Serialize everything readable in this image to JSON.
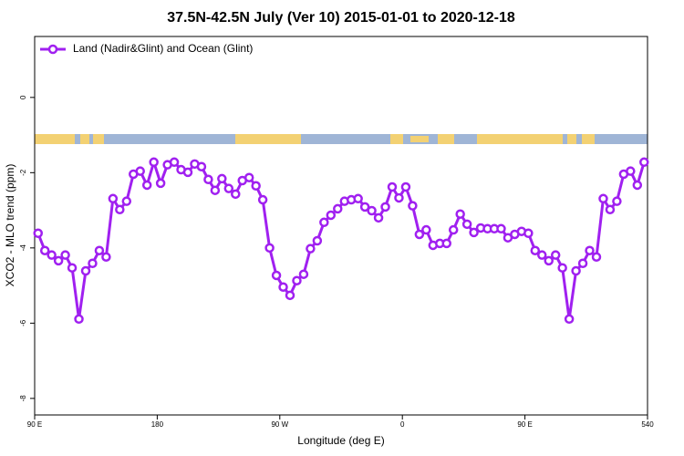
{
  "chart_data": {
    "type": "line",
    "title": "37.5N-42.5N July (Ver 10)   2015-01-01 to 2020-12-18",
    "x_label": "Longitude (deg E)",
    "y_label": "XCO2 - MLO trend (ppm)",
    "x": [
      92.5,
      97.5,
      102.5,
      107.5,
      112.5,
      117.5,
      122.5,
      127.5,
      132.5,
      137.5,
      142.5,
      147.5,
      152.5,
      157.5,
      162.5,
      167.5,
      172.5,
      177.5,
      182.5,
      187.5,
      192.5,
      197.5,
      202.5,
      207.5,
      212.5,
      217.5,
      222.5,
      227.5,
      232.5,
      237.5,
      242.5,
      247.5,
      252.5,
      257.5,
      262.5,
      267.5,
      272.5,
      277.5,
      282.5,
      287.5,
      292.5,
      297.5,
      302.5,
      307.5,
      312.5,
      317.5,
      322.5,
      327.5,
      332.5,
      337.5,
      342.5,
      347.5,
      352.5,
      357.5,
      362.5,
      367.5,
      372.5,
      377.5,
      382.5,
      387.5,
      392.5,
      397.5,
      402.5,
      407.5,
      412.5,
      417.5,
      422.5,
      427.5,
      432.5,
      437.5,
      442.5,
      447.5,
      452.5,
      457.5,
      462.5,
      467.5,
      472.5,
      477.5,
      482.5,
      487.5,
      492.5,
      497.5,
      502.5,
      507.5,
      512.5,
      517.5,
      522.5,
      527.5,
      532.5,
      537.5
    ],
    "series": [
      {
        "name": "Land (Nadir&Glint) and Ocean (Glint)",
        "color": "#a020f0",
        "values": [
          -3.61,
          -4.07,
          -4.19,
          -4.34,
          -4.19,
          -4.53,
          -5.89,
          -4.61,
          -4.41,
          -4.07,
          -4.24,
          -2.69,
          -2.98,
          -2.76,
          -2.04,
          -1.96,
          -2.33,
          -1.72,
          -2.28,
          -1.79,
          -1.72,
          -1.92,
          -1.99,
          -1.77,
          -1.84,
          -2.18,
          -2.47,
          -2.16,
          -2.42,
          -2.57,
          -2.21,
          -2.13,
          -2.35,
          -2.72,
          -4.0,
          -4.73,
          -5.04,
          -5.26,
          -4.87,
          -4.7,
          -4.02,
          -3.81,
          -3.32,
          -3.13,
          -2.96,
          -2.76,
          -2.72,
          -2.69,
          -2.91,
          -3.01,
          -3.2,
          -2.91,
          -2.38,
          -2.67,
          -2.38,
          -2.88,
          -3.64,
          -3.52,
          -3.93,
          -3.88,
          -3.88,
          -3.52,
          -3.1,
          -3.37,
          -3.59,
          -3.47,
          -3.49,
          -3.49,
          -3.49,
          -3.73,
          -3.64,
          -3.56,
          -3.61,
          -4.07,
          -4.19,
          -4.34,
          -4.19,
          -4.53,
          -5.89,
          -4.61,
          -4.41,
          -4.07,
          -4.24,
          -2.69,
          -2.98,
          -2.76,
          -2.04,
          -1.96,
          -2.33,
          -1.72
        ]
      }
    ],
    "xlim": [
      90,
      540
    ],
    "xticks": [
      {
        "value": 90,
        "label": "90 E"
      },
      180,
      {
        "value": 270,
        "label": "90 W"
      },
      {
        "value": 360,
        "label": "0"
      },
      {
        "value": 450,
        "label": "90 E"
      },
      540
    ],
    "ylim": [
      -8.44,
      1.62
    ],
    "yticks": [
      0,
      -2,
      -4,
      -6,
      -8
    ],
    "legend": "top-left",
    "grid": false
  }
}
